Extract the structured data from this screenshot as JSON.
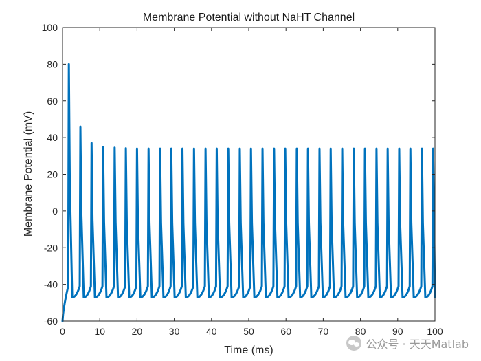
{
  "chart_data": {
    "type": "line",
    "title": "Membrane Potential without NaHT Channel",
    "xlabel": "Time (ms)",
    "ylabel": "Membrane Potential (mV)",
    "xlim": [
      0,
      100
    ],
    "ylim": [
      -60,
      100
    ],
    "xticks": [
      0,
      10,
      20,
      30,
      40,
      50,
      60,
      70,
      80,
      90,
      100
    ],
    "yticks": [
      -60,
      -40,
      -20,
      0,
      20,
      40,
      60,
      80,
      100
    ],
    "grid": false,
    "line_color": "#0072BD",
    "series": [
      {
        "name": "",
        "resting_start_mV": -60,
        "trough_mV": -47,
        "spike_times_ms": [
          1.7,
          4.8,
          7.8,
          10.9,
          14.0,
          17.0,
          20.0,
          23.1,
          26.2,
          29.2,
          32.2,
          35.3,
          38.4,
          41.4,
          44.5,
          47.6,
          50.6,
          53.7,
          56.8,
          59.8,
          62.9,
          65.9,
          69.0,
          72.0,
          75.1,
          78.2,
          81.2,
          84.3,
          87.3,
          90.4,
          93.4,
          96.5,
          99.5
        ],
        "spike_peaks_mV": [
          80,
          46,
          37,
          35,
          34.5,
          34.2,
          34,
          34,
          34,
          34,
          34,
          34,
          34,
          34,
          34,
          34,
          34,
          34,
          34,
          34,
          34,
          34,
          34,
          34,
          34,
          34,
          34,
          34,
          34,
          34,
          34,
          34,
          34
        ],
        "end_value_mV": -42
      }
    ]
  },
  "watermark": {
    "icon": "wechat-icon",
    "text": "公众号 · 天天Matlab"
  }
}
